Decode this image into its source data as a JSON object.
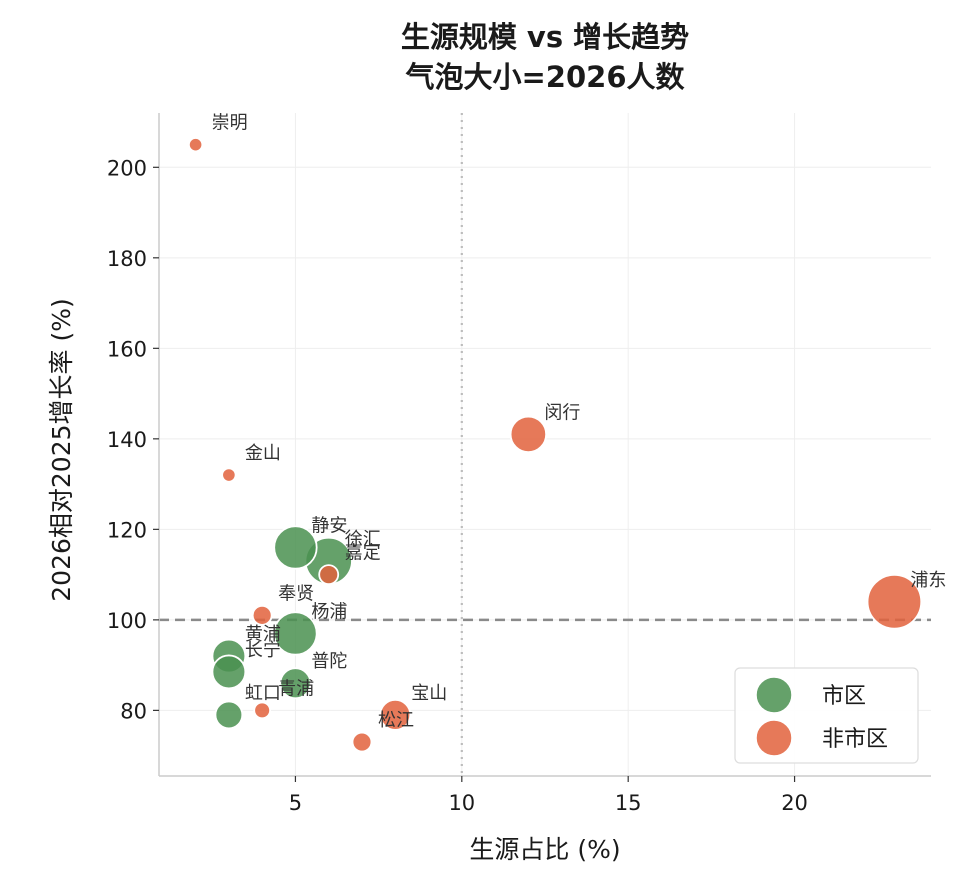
{
  "chart_data": {
    "type": "scatter",
    "title": [
      "生源规模 vs 增长趋势",
      "气泡大小=2026人数"
    ],
    "xlabel": "生源占比 (%)",
    "ylabel": "2026相对2025增长率 (%)",
    "xlim": [
      0.9,
      24.1
    ],
    "ylim": [
      65.5,
      212
    ],
    "xticks": [
      5,
      10,
      15,
      20
    ],
    "yticks": [
      80,
      100,
      120,
      140,
      160,
      180,
      200
    ],
    "grid": true,
    "reference_lines": [
      {
        "axis": "y",
        "value": 100,
        "style": "dashed"
      },
      {
        "axis": "x",
        "value": 10,
        "style": "dotted"
      }
    ],
    "legend_position": "bottom-right",
    "series": [
      {
        "name": "市区",
        "color": "#4a9150",
        "points": [
          {
            "label": "静安",
            "x": 5,
            "y": 116,
            "size": 5
          },
          {
            "label": "徐汇",
            "x": 6,
            "y": 113,
            "size": 6
          },
          {
            "label": "杨浦",
            "x": 5,
            "y": 97,
            "size": 5
          },
          {
            "label": "黄浦",
            "x": 3,
            "y": 92,
            "size": 3
          },
          {
            "label": "长宁",
            "x": 3,
            "y": 88.5,
            "size": 3
          },
          {
            "label": "普陀",
            "x": 5,
            "y": 86,
            "size": 2.5
          },
          {
            "label": "虹口",
            "x": 3,
            "y": 79,
            "size": 2
          }
        ]
      },
      {
        "name": "非市区",
        "color": "#e2623c",
        "points": [
          {
            "label": "崇明",
            "x": 2,
            "y": 205,
            "size": 0.5
          },
          {
            "label": "金山",
            "x": 3,
            "y": 132,
            "size": 0.5
          },
          {
            "label": "闵行",
            "x": 12,
            "y": 141,
            "size": 3.5
          },
          {
            "label": "嘉定",
            "x": 6,
            "y": 110,
            "size": 1
          },
          {
            "label": "奉贤",
            "x": 4,
            "y": 101,
            "size": 1
          },
          {
            "label": "浦东",
            "x": 23,
            "y": 104,
            "size": 8
          },
          {
            "label": "宝山",
            "x": 8,
            "y": 79,
            "size": 2.5
          },
          {
            "label": "青浦",
            "x": 4,
            "y": 80,
            "size": 0.7
          },
          {
            "label": "松江",
            "x": 7,
            "y": 73,
            "size": 1
          }
        ]
      }
    ]
  }
}
